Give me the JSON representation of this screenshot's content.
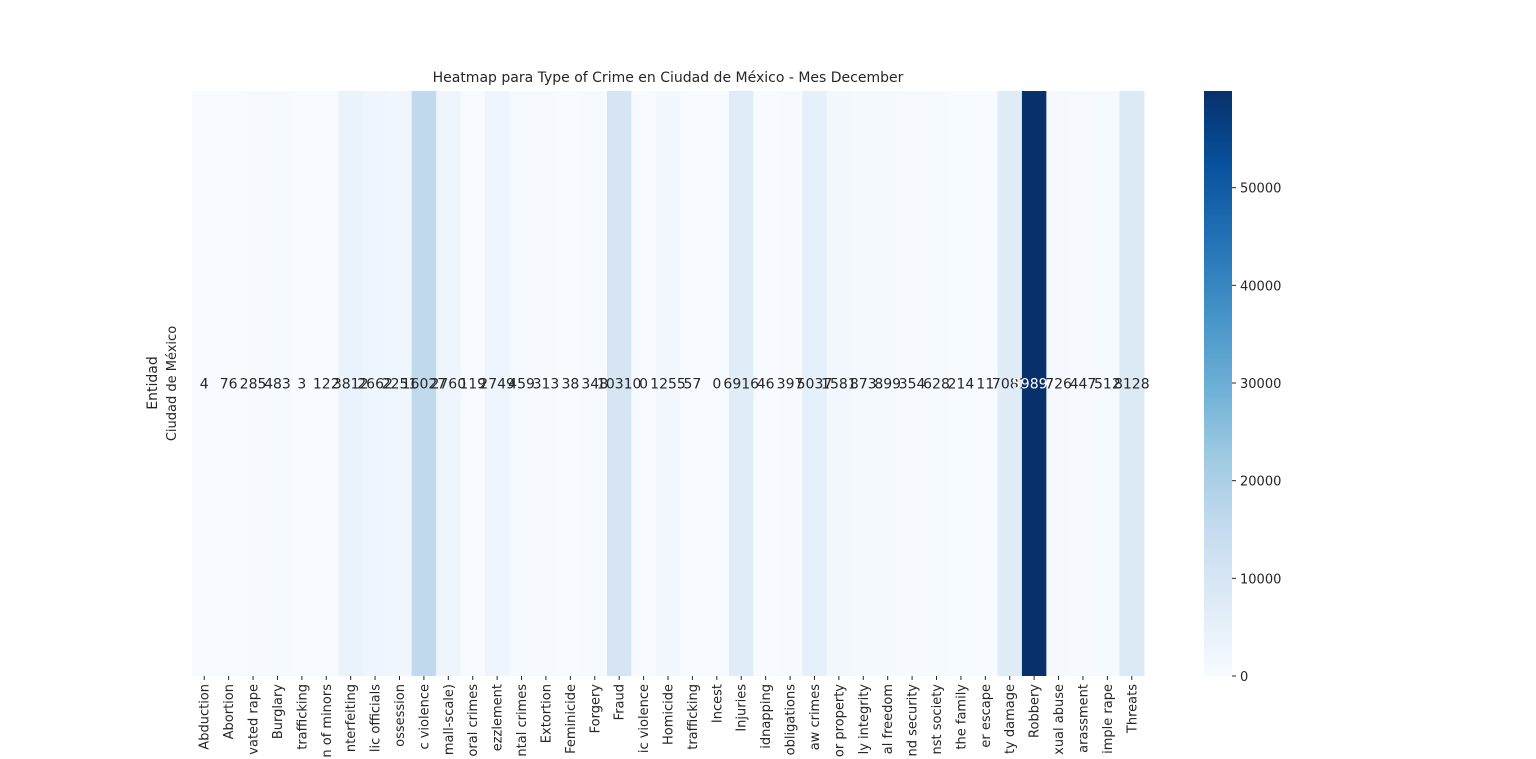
{
  "chart_data": {
    "type": "heatmap",
    "title": "Heatmap para Type of Crime en Ciudad de México - Mes December",
    "ylabel": "Entidad",
    "xlabel": "",
    "rows": [
      "Ciudad de México"
    ],
    "columns": [
      "Abduction",
      "Abortion",
      "vated rape",
      "Burglary",
      "trafficking",
      "n of minors",
      "nterfeiting",
      "lic officials",
      "ossession",
      "c violence",
      "mall-scale)",
      "oral crimes",
      "ezzlement",
      "ntal crimes",
      "Extortion",
      "Feminicide",
      "Forgery",
      "Fraud",
      "ic violence",
      "Homicide",
      "trafficking",
      "Incest",
      "Injuries",
      "idnapping",
      "obligations",
      "aw crimes",
      "or property",
      "ly integrity",
      "al freedom",
      "nd security",
      "nst society",
      "the family",
      "er escape",
      "ty damage",
      "Robbery",
      "xual abuse",
      "arassment",
      "imple rape",
      "Threats"
    ],
    "annotations": [
      "4",
      "76",
      "285",
      "483",
      "3",
      "122",
      "3812",
      "2662",
      "2251",
      "16027",
      "2760",
      "119",
      "2749",
      "459",
      "313",
      "38",
      "348",
      "10310",
      "0",
      "1255",
      "57",
      "0",
      "6916",
      "46",
      "397",
      "5037",
      "1581",
      "873",
      "899",
      "354",
      "628",
      "214",
      "11",
      "7081",
      "59898",
      "726",
      "447",
      "512",
      "8128"
    ],
    "values": [
      [
        4,
        76,
        285,
        483,
        3,
        122,
        3812,
        2662,
        2251,
        16027,
        2760,
        119,
        2749,
        459,
        313,
        38,
        348,
        10310,
        0,
        1255,
        57,
        0,
        6916,
        46,
        397,
        5037,
        1581,
        873,
        899,
        354,
        628,
        214,
        11,
        7081,
        59898,
        726,
        447,
        512,
        8128
      ]
    ],
    "colormap": "Blues",
    "vmin": 0,
    "vmax": 59898,
    "colorbar_ticks": [
      "0",
      "10000",
      "20000",
      "30000",
      "40000",
      "50000"
    ],
    "colorbar_tick_values": [
      0,
      10000,
      20000,
      30000,
      40000,
      50000
    ]
  }
}
